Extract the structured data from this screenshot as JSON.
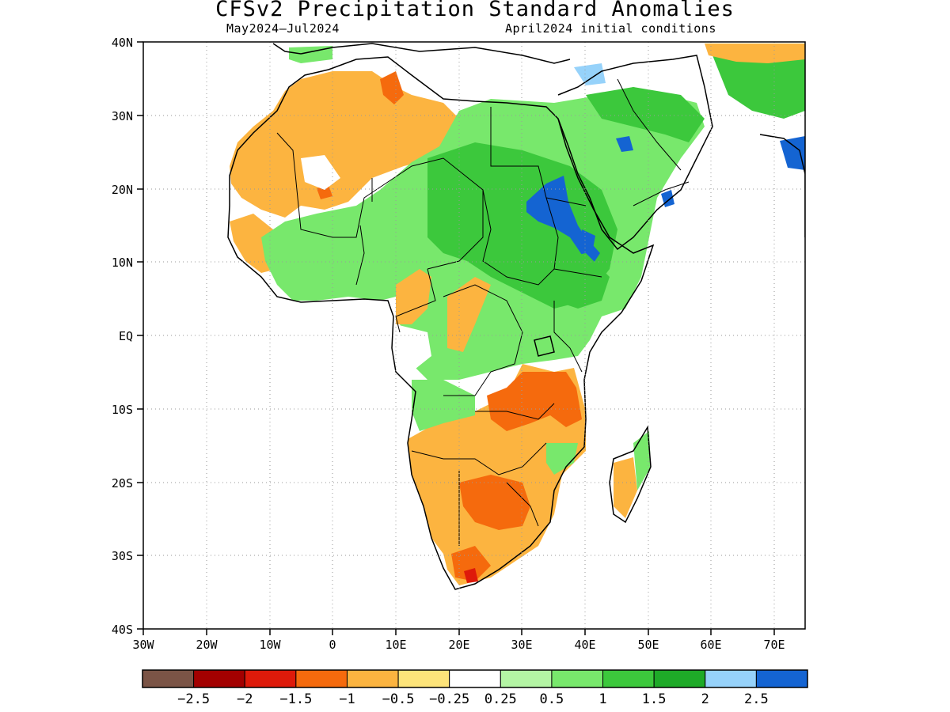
{
  "header": {
    "title": "CFSv2 Precipitation Standard Anomalies",
    "period": "May2024–Jul2024",
    "initial_conditions": "April2024 initial conditions"
  },
  "map": {
    "region": "Africa and Middle East",
    "lat_ticks": [
      "40N",
      "30N",
      "20N",
      "10N",
      "EQ",
      "10S",
      "20S",
      "30S",
      "40S"
    ],
    "lon_ticks": [
      "30W",
      "20W",
      "10W",
      "0",
      "10E",
      "20E",
      "30E",
      "40E",
      "50E",
      "60E",
      "70E"
    ],
    "grid": "dotted"
  },
  "colorbar": {
    "colors": [
      "#7b5446",
      "#a30000",
      "#de1a0a",
      "#f56a0d",
      "#fcb440",
      "#fde47a",
      "#ffffff",
      "#b4f5a4",
      "#78e86c",
      "#3cc83c",
      "#1eaa28",
      "#96d2fa",
      "#1464d2"
    ],
    "labels": [
      "−2.5",
      "−2",
      "−1.5",
      "−1",
      "−0.5",
      "−0.25",
      "0.25",
      "0.5",
      "1",
      "1.5",
      "2",
      "2.5"
    ]
  }
}
